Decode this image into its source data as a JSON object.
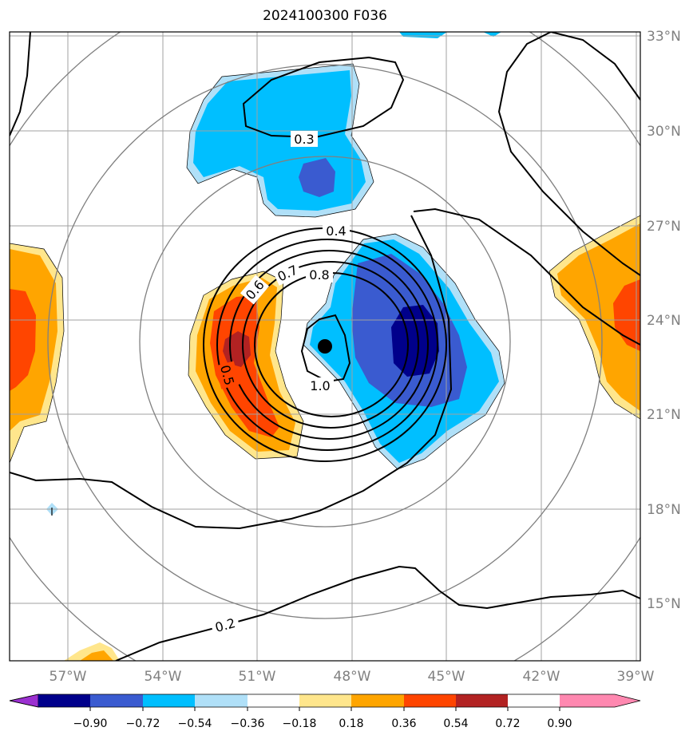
{
  "title": "2024100300 F036",
  "map": {
    "type": "contour-map",
    "lon_ticks": [
      "57°W",
      "54°W",
      "51°W",
      "48°W",
      "45°W",
      "42°W",
      "39°W"
    ],
    "lat_ticks": [
      "33°N",
      "30°N",
      "27°N",
      "24°N",
      "21°N",
      "18°N",
      "15°N"
    ],
    "center_marker": {
      "lon": -49.0,
      "lat": 23.2
    },
    "contour_labels": [
      "0.3",
      "0.4",
      "0.6",
      "0.7",
      "0.8",
      "0.5",
      "1.0",
      "0.2"
    ],
    "colors": {
      "neg_090": "#9b30d0",
      "neg_072": "#00008b",
      "neg_054": "#3a5bd0",
      "neg_036": "#00bfff",
      "neg_018": "#b0e0f8",
      "zero": "#ffffff",
      "pos_018": "#ffe68c",
      "pos_036": "#ffa500",
      "pos_054": "#ff4500",
      "pos_072": "#b22222",
      "pos_090": "#ff88b0"
    }
  },
  "colorbar": {
    "ticks": [
      "−0.90",
      "−0.72",
      "−0.54",
      "−0.36",
      "−0.18",
      "0.18",
      "0.36",
      "0.54",
      "0.72",
      "0.90"
    ],
    "colors": [
      "#9b30d0",
      "#00008b",
      "#3a5bd0",
      "#00bfff",
      "#b0e0f8",
      "#ffffff",
      "#ffe68c",
      "#ffa500",
      "#ff4500",
      "#b22222",
      "#ff88b0"
    ]
  }
}
